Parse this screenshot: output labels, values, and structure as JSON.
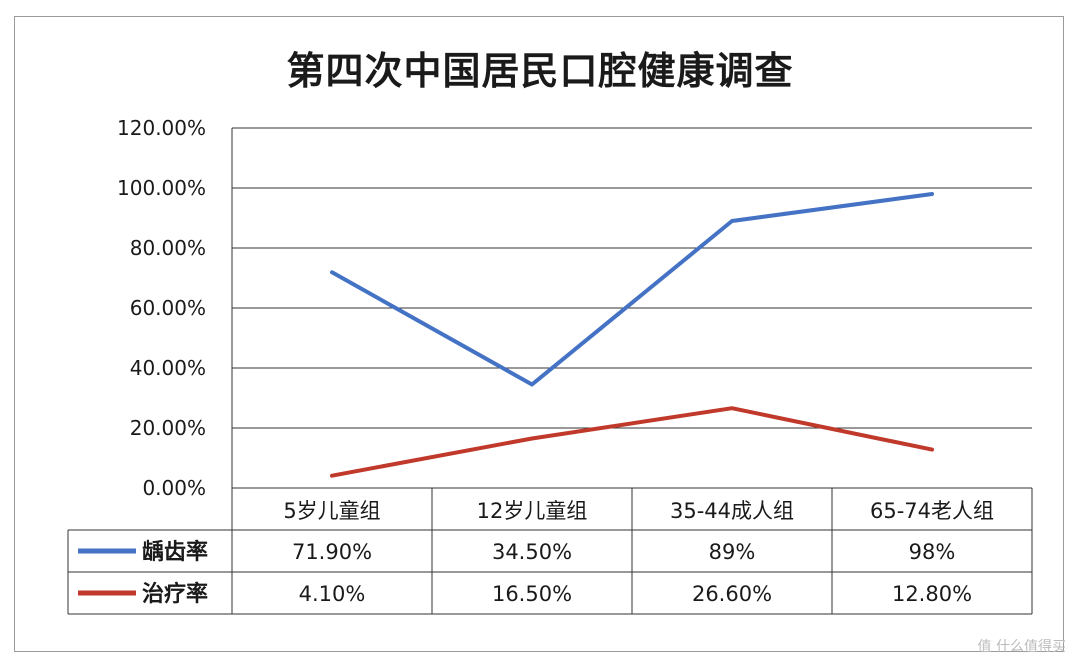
{
  "chart_data": {
    "type": "line",
    "title": "第四次中国居民口腔健康调查",
    "categories": [
      "5岁儿童组",
      "12岁儿童组",
      "35-44成人组",
      "65-74老人组"
    ],
    "ylim": [
      0,
      120
    ],
    "yticks": [
      0,
      20,
      40,
      60,
      80,
      100,
      120
    ],
    "ytick_labels": [
      "0.00%",
      "20.00%",
      "40.00%",
      "60.00%",
      "80.00%",
      "100.00%",
      "120.00%"
    ],
    "grid": true,
    "legend_placement": "bottom-data-table",
    "series": [
      {
        "name": "龋齿率",
        "color": "#4472c4",
        "values": [
          71.9,
          34.5,
          89,
          98
        ],
        "labels": [
          "71.90%",
          "34.50%",
          "89%",
          "98%"
        ]
      },
      {
        "name": "治疗率",
        "color": "#c0392b",
        "values": [
          4.1,
          16.5,
          26.6,
          12.8
        ],
        "labels": [
          "4.10%",
          "16.50%",
          "26.60%",
          "12.80%"
        ]
      }
    ]
  },
  "watermark": "值 什么值得买"
}
